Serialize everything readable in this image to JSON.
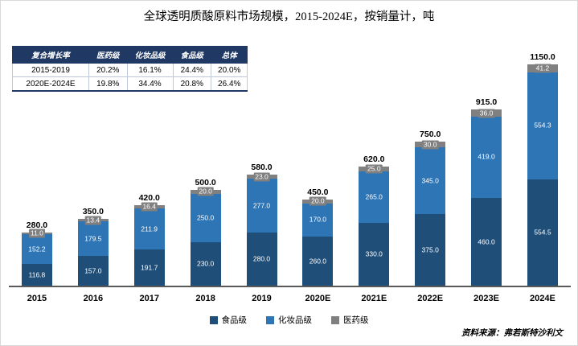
{
  "title": "全球透明质酸原料市场规模，2015-2024E，按销量计，吨",
  "table": {
    "headers": [
      "复合增长率",
      "医药级",
      "化妆品级",
      "食品级",
      "总体"
    ],
    "rows": [
      [
        "2015-2019",
        "20.2%",
        "16.1%",
        "24.4%",
        "20.0%"
      ],
      [
        "2020E-2024E",
        "19.8%",
        "34.4%",
        "20.8%",
        "26.4%"
      ]
    ]
  },
  "chart_data": {
    "type": "bar",
    "stacked": true,
    "title": "全球透明质酸原料市场规模，2015-2024E，按销量计，吨",
    "xlabel": "",
    "ylabel": "吨",
    "ylim": [
      0,
      1200
    ],
    "grid": false,
    "legend_position": "bottom",
    "categories": [
      "2015",
      "2016",
      "2017",
      "2018",
      "2019",
      "2020E",
      "2021E",
      "2022E",
      "2023E",
      "2024E"
    ],
    "series": [
      {
        "name": "食品级",
        "color": "#1F4E79",
        "values": [
          116.8,
          157.0,
          191.7,
          230.0,
          280.0,
          260.0,
          330.0,
          375.0,
          460.0,
          554.5
        ]
      },
      {
        "name": "化妆品级",
        "color": "#2E75B6",
        "values": [
          152.2,
          179.5,
          211.9,
          250.0,
          277.0,
          170.0,
          265.0,
          345.0,
          419.0,
          554.3
        ]
      },
      {
        "name": "医药级",
        "color": "#808080",
        "values": [
          11.0,
          13.4,
          16.4,
          20.0,
          23.0,
          20.0,
          25.0,
          30.0,
          36.0,
          41.2
        ]
      }
    ],
    "totals": [
      280.0,
      350.0,
      420.0,
      500.0,
      580.0,
      450.0,
      620.0,
      750.0,
      915.0,
      1150.0
    ]
  },
  "source": "资料来源：弗若斯特沙利文"
}
